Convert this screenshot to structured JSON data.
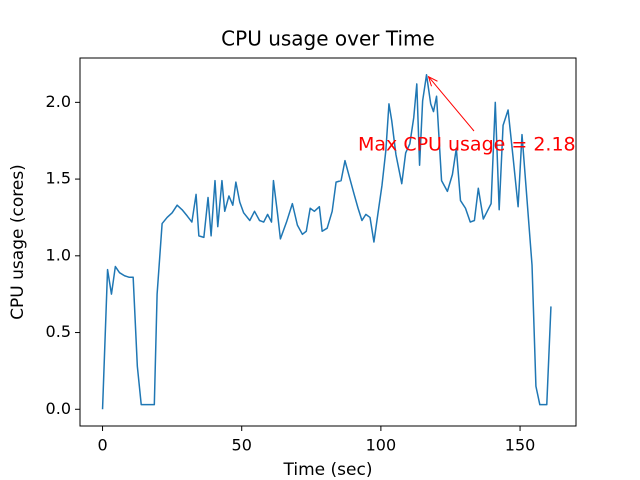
{
  "chart_data": {
    "type": "line",
    "title": "CPU usage over Time",
    "x_label": "Time (sec)",
    "y_label": "CPU usage (cores)",
    "annotation": "Max CPU usage = 2.18",
    "annotation_color": "#ff0000",
    "xlim": [
      -8.1,
      170.1
    ],
    "ylim": [
      -0.109,
      2.289
    ],
    "xticks": [
      0,
      50,
      100,
      150
    ],
    "yticks": [
      {
        "value": 0,
        "label": "0.0"
      },
      0.5,
      {
        "value": 1,
        "label": "1.0"
      },
      1.5,
      {
        "value": 2,
        "label": "2.0"
      }
    ],
    "series": [
      {
        "color": "#1f77b4",
        "x": [
          0,
          1.8,
          3.2,
          4.6,
          6.1,
          7.9,
          9.6,
          11,
          12.5,
          13.9,
          15.7,
          17.1,
          18.6,
          19.6,
          21.4,
          23.2,
          25,
          26.8,
          28.6,
          30.4,
          32.1,
          33.6,
          34.6,
          36.4,
          37.9,
          39,
          40.4,
          41.4,
          42.9,
          43.9,
          45.4,
          46.8,
          47.9,
          49.3,
          50.7,
          52.9,
          54.6,
          56.4,
          57.9,
          59.3,
          60.7,
          61.4,
          62.9,
          63.9,
          66.1,
          68.2,
          70,
          71.8,
          73.2,
          74.6,
          76.1,
          77.9,
          78.9,
          80.7,
          82.5,
          83.9,
          85.7,
          87.1,
          88.6,
          90.4,
          91.8,
          93.2,
          94.6,
          96.1,
          97.5,
          98.9,
          100.4,
          101.8,
          102.9,
          103.9,
          105.4,
          107.5,
          108.9,
          110.4,
          111.8,
          112.9,
          113.9,
          115,
          116.4,
          117.9,
          118.9,
          120,
          121.8,
          123.9,
          125.7,
          127.1,
          128.6,
          130.4,
          132.1,
          133.6,
          135,
          136.8,
          138.2,
          139.6,
          141.1,
          142.5,
          143.9,
          145.7,
          147.5,
          149.3,
          150.7,
          152.1,
          154.3,
          155.7,
          157.1,
          158.6,
          159.6,
          161.1
        ],
        "values": [
          0,
          0.91,
          0.75,
          0.93,
          0.89,
          0.87,
          0.86,
          0.86,
          0.28,
          0.03,
          0.03,
          0.03,
          0.03,
          0.75,
          1.21,
          1.25,
          1.28,
          1.33,
          1.3,
          1.26,
          1.22,
          1.4,
          1.13,
          1.12,
          1.38,
          1.13,
          1.49,
          1.19,
          1.49,
          1.29,
          1.39,
          1.33,
          1.48,
          1.35,
          1.28,
          1.23,
          1.29,
          1.23,
          1.22,
          1.27,
          1.22,
          1.49,
          1.27,
          1.11,
          1.22,
          1.34,
          1.2,
          1.14,
          1.16,
          1.31,
          1.29,
          1.32,
          1.16,
          1.18,
          1.29,
          1.48,
          1.49,
          1.62,
          1.52,
          1.4,
          1.31,
          1.23,
          1.27,
          1.25,
          1.09,
          1.27,
          1.46,
          1.69,
          1.99,
          1.88,
          1.66,
          1.47,
          1.67,
          1.73,
          1.9,
          2.12,
          1.59,
          2.01,
          2.18,
          1.99,
          1.94,
          2.04,
          1.49,
          1.42,
          1.53,
          1.7,
          1.36,
          1.31,
          1.22,
          1.23,
          1.44,
          1.24,
          1.29,
          1.34,
          2.0,
          1.3,
          1.85,
          1.95,
          1.64,
          1.32,
          1.79,
          1.46,
          0.94,
          0.15,
          0.03,
          0.03,
          0.03,
          0.67
        ]
      }
    ]
  }
}
